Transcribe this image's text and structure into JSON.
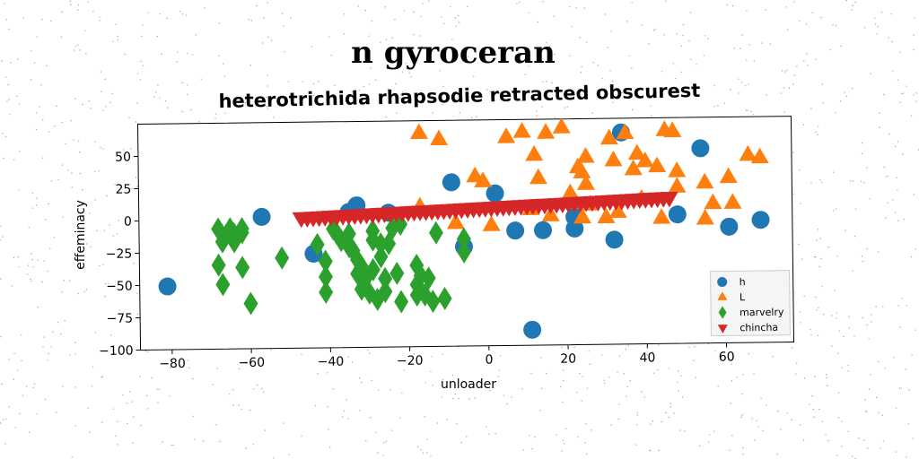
{
  "chart_data": {
    "type": "scatter",
    "title": "n gyroceran",
    "subtitle": "heterotrichida rhapsodie retracted obscurest",
    "xlabel": "unloader",
    "ylabel": "effeminacy",
    "xlim": [
      -88,
      77
    ],
    "ylim": [
      -100,
      75
    ],
    "xticks": [
      -80,
      -60,
      -40,
      -20,
      0,
      20,
      40,
      60
    ],
    "yticks": [
      -100,
      -75,
      -50,
      -25,
      0,
      25,
      50
    ],
    "grid": false,
    "legend_position": "lower-right",
    "series": [
      {
        "name": "h",
        "marker": "circle",
        "color": "#1f77b4",
        "points": [
          [
            -81,
            -51
          ],
          [
            -57,
            2
          ],
          [
            -35,
            5
          ],
          [
            -44,
            -27
          ],
          [
            -33,
            10
          ],
          [
            -25,
            4
          ],
          [
            -9,
            27
          ],
          [
            -6,
            -23
          ],
          [
            2,
            18
          ],
          [
            7,
            -11
          ],
          [
            14,
            -11
          ],
          [
            11,
            -88
          ],
          [
            22,
            -1
          ],
          [
            22,
            -10
          ],
          [
            32,
            -19
          ],
          [
            34,
            64
          ],
          [
            48,
            0
          ],
          [
            54,
            51
          ],
          [
            61,
            -10
          ],
          [
            69,
            -5
          ]
        ]
      },
      {
        "name": "L",
        "marker": "triangle-up",
        "color": "#ff7f0e",
        "points": [
          [
            -17,
            65
          ],
          [
            -12,
            60
          ],
          [
            -17,
            8
          ],
          [
            -8,
            -5
          ],
          [
            -3,
            31
          ],
          [
            -1,
            27
          ],
          [
            1,
            -7
          ],
          [
            5,
            61
          ],
          [
            9,
            65
          ],
          [
            11,
            5
          ],
          [
            12,
            47
          ],
          [
            13,
            29
          ],
          [
            15,
            64
          ],
          [
            16,
            0
          ],
          [
            19,
            68
          ],
          [
            21,
            17
          ],
          [
            23,
            37
          ],
          [
            24,
            33
          ],
          [
            24,
            -2
          ],
          [
            25,
            24
          ],
          [
            25,
            45
          ],
          [
            26,
            8
          ],
          [
            30,
            -2
          ],
          [
            31,
            59
          ],
          [
            32,
            42
          ],
          [
            33,
            2
          ],
          [
            35,
            63
          ],
          [
            37,
            35
          ],
          [
            38,
            47
          ],
          [
            39,
            12
          ],
          [
            40,
            41
          ],
          [
            43,
            37
          ],
          [
            44,
            -3
          ],
          [
            45,
            65
          ],
          [
            47,
            64
          ],
          [
            48,
            33
          ],
          [
            48,
            21
          ],
          [
            55,
            -4
          ],
          [
            55,
            24
          ],
          [
            57,
            8
          ],
          [
            61,
            28
          ],
          [
            62,
            8
          ],
          [
            66,
            45
          ],
          [
            69,
            43
          ]
        ]
      },
      {
        "name": "marvelry",
        "marker": "diamond",
        "color": "#2ca02c",
        "points": [
          [
            -68,
            -7
          ],
          [
            -67,
            -17
          ],
          [
            -66,
            -12
          ],
          [
            -65,
            -7
          ],
          [
            -64,
            -11
          ],
          [
            -64,
            -17
          ],
          [
            -62,
            -7
          ],
          [
            -62,
            -10
          ],
          [
            -67,
            -50
          ],
          [
            -68,
            -35
          ],
          [
            -62,
            -37
          ],
          [
            -60,
            -65
          ],
          [
            -52,
            -30
          ],
          [
            -43,
            -20
          ],
          [
            -41,
            -33
          ],
          [
            -41,
            -45
          ],
          [
            -41,
            -57
          ],
          [
            -39,
            -8
          ],
          [
            -38,
            -12
          ],
          [
            -37,
            -17
          ],
          [
            -35,
            -12
          ],
          [
            -35,
            -22
          ],
          [
            -34,
            -25
          ],
          [
            -33,
            -32
          ],
          [
            -33,
            -43
          ],
          [
            -32,
            -37
          ],
          [
            -32,
            -55
          ],
          [
            -31,
            -47
          ],
          [
            -30,
            -58
          ],
          [
            -29,
            -17
          ],
          [
            -29,
            -10
          ],
          [
            -29,
            -40
          ],
          [
            -28,
            -63
          ],
          [
            -27,
            -20
          ],
          [
            -27,
            -30
          ],
          [
            -26,
            -47
          ],
          [
            -26,
            -57
          ],
          [
            -25,
            -20
          ],
          [
            -24,
            -8
          ],
          [
            -23,
            -43
          ],
          [
            -22,
            -65
          ],
          [
            -22,
            -5
          ],
          [
            -18,
            -37
          ],
          [
            -18,
            -52
          ],
          [
            -18,
            -60
          ],
          [
            -17,
            -45
          ],
          [
            -16,
            -60
          ],
          [
            -15,
            -47
          ],
          [
            -14,
            -65
          ],
          [
            -13,
            -12
          ],
          [
            -11,
            -63
          ],
          [
            -6,
            -17
          ],
          [
            -6,
            -27
          ]
        ]
      },
      {
        "name": "chincha",
        "marker": "triangle-down",
        "color": "#d62728",
        "points": [
          [
            -47,
            1
          ],
          [
            -44,
            1.4
          ],
          [
            -41,
            1.8
          ],
          [
            -38,
            2.2
          ],
          [
            -35,
            2.6
          ],
          [
            -32,
            3
          ],
          [
            -29,
            3.4
          ],
          [
            -26,
            3.8
          ],
          [
            -23,
            4.2
          ],
          [
            -20,
            4.6
          ],
          [
            -17,
            5
          ],
          [
            -14,
            5.4
          ],
          [
            -11,
            5.8
          ],
          [
            -8,
            6.2
          ],
          [
            -5,
            6.6
          ],
          [
            -2,
            7
          ],
          [
            1,
            7.4
          ],
          [
            4,
            7.8
          ],
          [
            7,
            8.2
          ],
          [
            10,
            8.6
          ],
          [
            13,
            9
          ],
          [
            16,
            9.4
          ],
          [
            19,
            9.8
          ],
          [
            22,
            10.2
          ],
          [
            25,
            10.6
          ],
          [
            28,
            11
          ],
          [
            31,
            11.4
          ],
          [
            34,
            11.8
          ],
          [
            37,
            12.2
          ],
          [
            40,
            12.6
          ],
          [
            43,
            13
          ],
          [
            46,
            13.4
          ],
          [
            -45.5,
            1.2
          ],
          [
            -42.5,
            1.6
          ],
          [
            -39.5,
            2
          ],
          [
            -36.5,
            2.4
          ],
          [
            -33.5,
            2.8
          ],
          [
            -30.5,
            3.2
          ],
          [
            -27.5,
            3.6
          ],
          [
            -24.5,
            4
          ],
          [
            -21.5,
            4.4
          ],
          [
            -18.5,
            4.8
          ],
          [
            -15.5,
            5.2
          ],
          [
            -12.5,
            5.6
          ],
          [
            -9.5,
            6
          ],
          [
            -6.5,
            6.4
          ],
          [
            -3.5,
            6.8
          ],
          [
            -0.5,
            7.2
          ],
          [
            2.5,
            7.6
          ],
          [
            5.5,
            8
          ],
          [
            8.5,
            8.4
          ],
          [
            11.5,
            8.8
          ],
          [
            14.5,
            9.2
          ],
          [
            17.5,
            9.6
          ],
          [
            20.5,
            10
          ],
          [
            23.5,
            10.4
          ],
          [
            26.5,
            10.8
          ],
          [
            29.5,
            11.2
          ],
          [
            32.5,
            11.6
          ],
          [
            35.5,
            12
          ],
          [
            38.5,
            12.4
          ],
          [
            41.5,
            12.8
          ],
          [
            44.5,
            13.2
          ]
        ]
      }
    ]
  }
}
